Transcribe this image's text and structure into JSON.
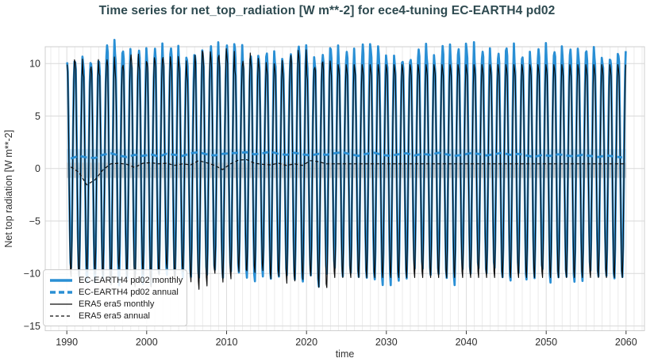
{
  "page": {
    "background": "#ffffff"
  },
  "chart_data": {
    "type": "line",
    "title": "Time series for net_top_radiation [W m**-2] for ece4-tuning EC-EARTH4 pd02",
    "title_color": "#2e4a50",
    "xlabel": "time",
    "ylabel": "Net top radiation [W m**-2]",
    "xlim": [
      1987.3,
      2062.3
    ],
    "ylim": [
      -15.45,
      11.6
    ],
    "xticks": [
      1990,
      2000,
      2010,
      2020,
      2030,
      2040,
      2050,
      2060
    ],
    "yticks": [
      10,
      5,
      0,
      -5,
      -10,
      -15
    ],
    "grid": {
      "horizontal_at_yticks": true,
      "vertical_every_year": true,
      "legend_position": "lower left"
    },
    "axis_colors": {
      "tick_label": "#2e2e2e",
      "axis_label": "#333333",
      "grid_major": "#dadada",
      "grid_year": "#ebebeb",
      "grid_decade": "#dddddd",
      "spine": "#cfcfcf"
    },
    "bands": [
      {
        "label": "model annual spread",
        "color": "rgba(42,143,212,0.17)",
        "x": [
          1990,
          2060
        ],
        "y": [
          0.55,
          1.85
        ]
      },
      {
        "label": "reference annual spread",
        "color": "rgba(122,122,122,0.33)",
        "x": [
          1990,
          2060
        ],
        "y": [
          -0.9,
          0.55
        ]
      }
    ],
    "series": [
      {
        "name": "EC-EARTH4 pd02 monthly",
        "kind": "monthly",
        "color": "#2a8fd4",
        "line": "solid",
        "width": 2.7,
        "year_start": 1990,
        "year_end": 2060,
        "seasonal_cycle": [
          10.6,
          9.8,
          5.2,
          -0.6,
          -6.2,
          -9.6,
          -10.3,
          -7.4,
          -1.6,
          4.2,
          8.8,
          10.9
        ],
        "annual_mean": 1.2,
        "peak_range": [
          9.5,
          11.7
        ],
        "trough_range": [
          -11.2,
          -9.2
        ]
      },
      {
        "name": "EC-EARTH4 pd02 annual",
        "kind": "annual",
        "color": "#2a8fd4",
        "line": "dashed",
        "width": 2.8,
        "year_start": 1990,
        "values": [
          0.95,
          1.2,
          1.05,
          1.0,
          1.3,
          1.45,
          1.25,
          1.1,
          1.3,
          1.2,
          1.35,
          1.15,
          1.4,
          1.3,
          1.2,
          1.45,
          1.55,
          1.35,
          1.25,
          1.4,
          1.45,
          1.5,
          1.55,
          1.35,
          1.45,
          1.6,
          1.4,
          1.3,
          1.5,
          1.35,
          1.25,
          1.4,
          1.3,
          1.45,
          1.55,
          1.35,
          1.2,
          1.4,
          1.5,
          1.3,
          1.2,
          1.35,
          1.45,
          1.25,
          1.4,
          1.3,
          1.5,
          1.35,
          1.2,
          1.3,
          1.45,
          1.4,
          1.25,
          1.35,
          1.5,
          1.3,
          1.4,
          1.25,
          1.1,
          1.3,
          1.2,
          1.35,
          1.25,
          1.15,
          1.3,
          1.2,
          1.1,
          1.25,
          1.15,
          1.05
        ]
      },
      {
        "name": "ERA5 era5 monthly",
        "kind": "monthly",
        "color": "#0d0d0d",
        "line": "solid",
        "width": 1.15,
        "year_start": 1990,
        "year_end": 2060,
        "seasonal_cycle": [
          9.8,
          9.1,
          4.5,
          -1.2,
          -6.7,
          -10.0,
          -10.6,
          -7.8,
          -2.2,
          3.5,
          8.2,
          10.2
        ],
        "annual_mean": 0.5,
        "climatology_after": 2023,
        "peak_range": [
          9.0,
          10.6
        ],
        "trough_range": [
          -10.6,
          -9.4
        ]
      },
      {
        "name": "ERA5 era5 annual",
        "kind": "annual",
        "color": "#0d0d0d",
        "line": "dashed",
        "width": 1.2,
        "year_start": 1990,
        "values": [
          0.15,
          -0.35,
          -1.55,
          -1.1,
          -0.15,
          0.45,
          0.5,
          0.4,
          0.1,
          0.5,
          0.55,
          0.45,
          0.5,
          0.3,
          0.45,
          0.35,
          0.75,
          0.55,
          0.3,
          -0.1,
          0.45,
          0.8,
          0.85,
          0.5,
          0.4,
          0.35,
          0.5,
          0.3,
          0.45,
          0.3,
          0.75,
          0.65,
          0.45,
          0.45
        ],
        "extended_constant": 0.45,
        "extend_to": 2060
      }
    ]
  }
}
